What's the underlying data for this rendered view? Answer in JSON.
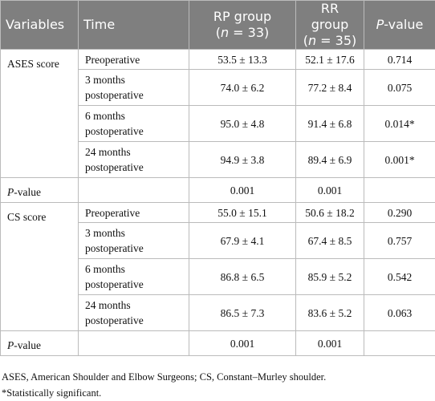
{
  "table": {
    "header": [
      [
        {
          "text": "Variables"
        }
      ],
      [
        {
          "text": "Time"
        }
      ],
      [
        {
          "text": "RP group"
        },
        {
          "text": "(",
          "break": true
        },
        {
          "text": "n",
          "italic": true
        },
        {
          "text": " = 33)"
        }
      ],
      [
        {
          "text": "RR group"
        },
        {
          "text": "(",
          "break": true
        },
        {
          "text": "n",
          "italic": true
        },
        {
          "text": " = 35)"
        }
      ],
      [
        {
          "text": "P",
          "italic": true
        },
        {
          "text": "-value"
        }
      ]
    ],
    "sections": [
      {
        "variable": [
          {
            "text": "ASES score"
          }
        ],
        "rows": [
          [
            "Preoperative",
            "53.5 ± 13.3",
            "52.1 ± 17.6",
            "0.714"
          ],
          [
            "3 months postoperative",
            "74.0 ± 6.2",
            "77.2 ± 8.4",
            "0.075"
          ],
          [
            "6 months postoperative",
            "95.0 ± 4.8",
            "91.4 ± 6.8",
            "0.014*"
          ],
          [
            "24 months postoperative",
            "94.9 ± 3.8",
            "89.4 ± 6.9",
            "0.001*"
          ]
        ]
      },
      {
        "variable": [
          {
            "text": "P",
            "italic": true
          },
          {
            "text": "-value"
          }
        ],
        "rows": [
          [
            null,
            "0.001",
            "0.001",
            null
          ]
        ]
      },
      {
        "variable": [
          {
            "text": "CS score"
          }
        ],
        "rows": [
          [
            "Preoperative",
            "55.0 ± 15.1",
            "50.6 ± 18.2",
            "0.290"
          ],
          [
            "3 months postoperative",
            "67.9 ± 4.1",
            "67.4 ± 8.5",
            "0.757"
          ],
          [
            "6 months postoperative",
            "86.8 ± 6.5",
            "85.9 ± 5.2",
            "0.542"
          ],
          [
            "24 months postoperative",
            "86.5 ± 7.3",
            "83.6 ± 5.2",
            "0.063"
          ]
        ]
      },
      {
        "variable": [
          {
            "text": "P",
            "italic": true
          },
          {
            "text": "-value"
          }
        ],
        "rows": [
          [
            null,
            "0.001",
            "0.001",
            null
          ]
        ]
      }
    ]
  },
  "footnotes": [
    "ASES, American Shoulder and Elbow Surgeons; CS, Constant–Murley shoulder.",
    "*Statistically significant."
  ]
}
